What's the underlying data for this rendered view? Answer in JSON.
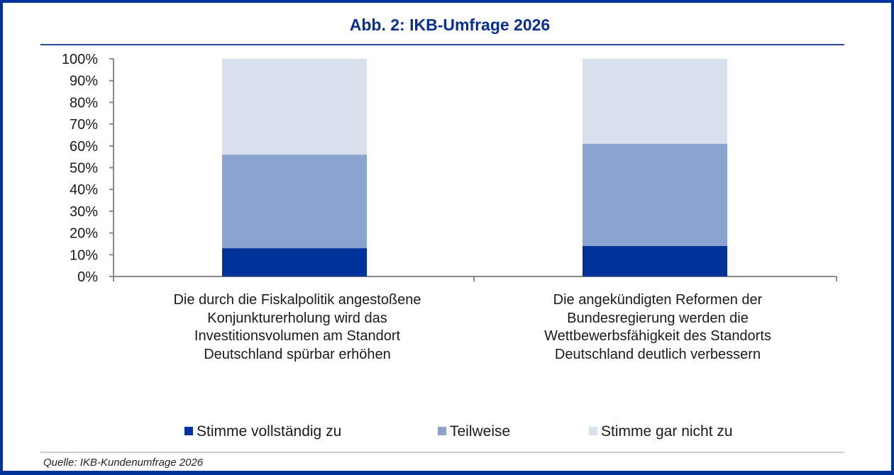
{
  "colors": {
    "border": "#00339a",
    "title": "#0a2f8f",
    "series": [
      "#00339a",
      "#8aa3cf",
      "#d8e0ed"
    ]
  },
  "chart_data": {
    "type": "bar",
    "stacked": true,
    "title": "Abb. 2: IKB-Umfrage 2026",
    "xlabel": "",
    "ylabel": "",
    "ylim": [
      0,
      100
    ],
    "y_ticks": [
      "0%",
      "10%",
      "20%",
      "30%",
      "40%",
      "50%",
      "60%",
      "70%",
      "80%",
      "90%",
      "100%"
    ],
    "categories": [
      "Die durch die Fiskalpolitik angestoßene Konjunkturerholung wird das Investitionsvolumen am Standort Deutschland spürbar erhöhen",
      "Die angekündigten Reformen der Bundesregierung werden die Wettbewerbsfähigkeit des Standorts Deutschland deutlich verbessern"
    ],
    "category_lines": [
      [
        "Die durch die Fiskalpolitik angestoßene",
        "Konjunkturerholung wird das",
        "Investitionsvolumen am Standort",
        "Deutschland spürbar erhöhen"
      ],
      [
        "Die angekündigten Reformen der",
        "Bundesregierung werden die",
        "Wettbewerbsfähigkeit des Standorts",
        "Deutschland deutlich verbessern"
      ]
    ],
    "series": [
      {
        "name": "Stimme vollständig zu",
        "values": [
          13,
          14
        ]
      },
      {
        "name": "Teilweise",
        "values": [
          43,
          47
        ]
      },
      {
        "name": "Stimme gar nicht zu",
        "values": [
          44,
          39
        ]
      }
    ],
    "legend_position": "bottom",
    "grid": false
  },
  "source": "Quelle: IKB-Kundenumfrage 2026"
}
